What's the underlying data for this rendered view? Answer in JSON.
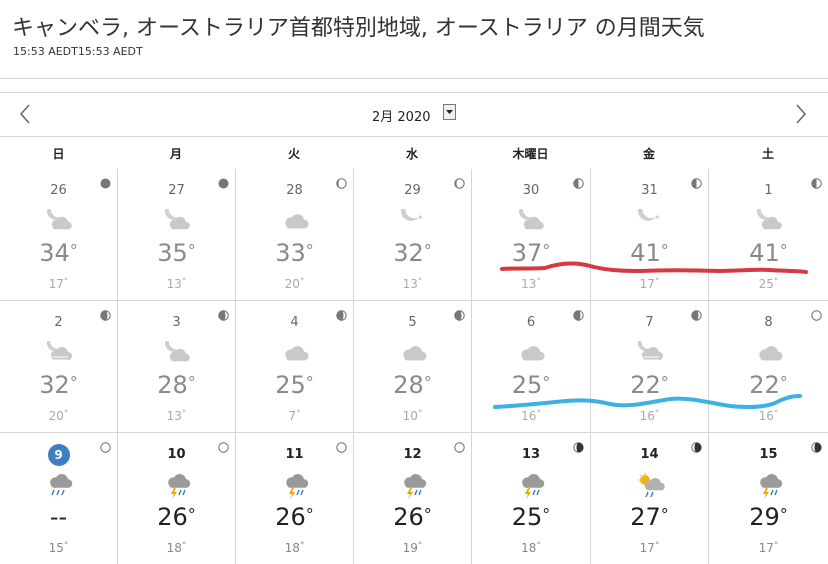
{
  "page": {
    "title": "キャンベラ, オーストラリア首都特別地域, オーストラリア の月間天気",
    "subtitle": "15:53 AEDT15:53 AEDT",
    "month_label": "2月 2020"
  },
  "weekdays": [
    "日",
    "月",
    "火",
    "水",
    "木曜日",
    "金",
    "土"
  ],
  "weeks": [
    [
      {
        "day": "26",
        "hi": "34",
        "lo": "17",
        "icon": "partly-cloudy-night-icon",
        "moon": "new-moon-icon"
      },
      {
        "day": "27",
        "hi": "35",
        "lo": "13",
        "icon": "partly-cloudy-night-icon",
        "moon": "new-moon-icon"
      },
      {
        "day": "28",
        "hi": "33",
        "lo": "20",
        "icon": "cloud-icon",
        "moon": "waxing-crescent-moon-icon"
      },
      {
        "day": "29",
        "hi": "32",
        "lo": "13",
        "icon": "clear-night-icon",
        "moon": "waxing-crescent-moon-icon"
      },
      {
        "day": "30",
        "hi": "37",
        "lo": "13",
        "icon": "partly-cloudy-night-icon",
        "moon": "first-quarter-moon-icon"
      },
      {
        "day": "31",
        "hi": "41",
        "lo": "17",
        "icon": "clear-night-icon",
        "moon": "first-quarter-moon-icon"
      },
      {
        "day": "1",
        "hi": "41",
        "lo": "25",
        "icon": "partly-cloudy-night-icon",
        "moon": "first-quarter-moon-icon"
      }
    ],
    [
      {
        "day": "2",
        "hi": "32",
        "lo": "20",
        "icon": "cloudy-night-icon",
        "moon": "waxing-gibbous-moon-icon"
      },
      {
        "day": "3",
        "hi": "28",
        "lo": "13",
        "icon": "partly-cloudy-night-icon",
        "moon": "waxing-gibbous-moon-icon"
      },
      {
        "day": "4",
        "hi": "25",
        "lo": "7",
        "icon": "cloud-icon",
        "moon": "waxing-gibbous-moon-icon"
      },
      {
        "day": "5",
        "hi": "28",
        "lo": "10",
        "icon": "cloud-icon",
        "moon": "waxing-gibbous-moon-icon"
      },
      {
        "day": "6",
        "hi": "25",
        "lo": "16",
        "icon": "cloud-icon",
        "moon": "waxing-gibbous-moon-icon"
      },
      {
        "day": "7",
        "hi": "22",
        "lo": "16",
        "icon": "cloudy-night-icon",
        "moon": "waxing-gibbous-moon-icon"
      },
      {
        "day": "8",
        "hi": "22",
        "lo": "16",
        "icon": "cloud-icon",
        "moon": "full-moon-icon"
      }
    ],
    [
      {
        "day": "9",
        "hi": "--",
        "lo": "15",
        "icon": "rain-cloud-icon",
        "moon": "full-moon-icon",
        "today": true
      },
      {
        "day": "10",
        "hi": "26",
        "lo": "18",
        "icon": "thunderstorm-icon",
        "moon": "full-moon-icon"
      },
      {
        "day": "11",
        "hi": "26",
        "lo": "18",
        "icon": "thunderstorm-icon",
        "moon": "full-moon-icon"
      },
      {
        "day": "12",
        "hi": "26",
        "lo": "19",
        "icon": "thunderstorm-icon",
        "moon": "full-moon-icon"
      },
      {
        "day": "13",
        "hi": "25",
        "lo": "18",
        "icon": "thunderstorm-icon",
        "moon": "waning-gibbous-moon-icon"
      },
      {
        "day": "14",
        "hi": "27",
        "lo": "17",
        "icon": "sun-rain-icon",
        "moon": "waning-gibbous-moon-icon"
      },
      {
        "day": "15",
        "hi": "29",
        "lo": "17",
        "icon": "thunderstorm-icon",
        "moon": "waning-gibbous-moon-icon"
      }
    ]
  ],
  "colors": {
    "today_circle": "#3e7fc4",
    "annotation_red": "#d2232a",
    "annotation_blue": "#29a8e0",
    "cloud": "#c9c9c9",
    "moon": "#cfcfcf",
    "sun": "#f3b219",
    "lightning": "#f0a500",
    "rain": "#3e7fc4"
  }
}
